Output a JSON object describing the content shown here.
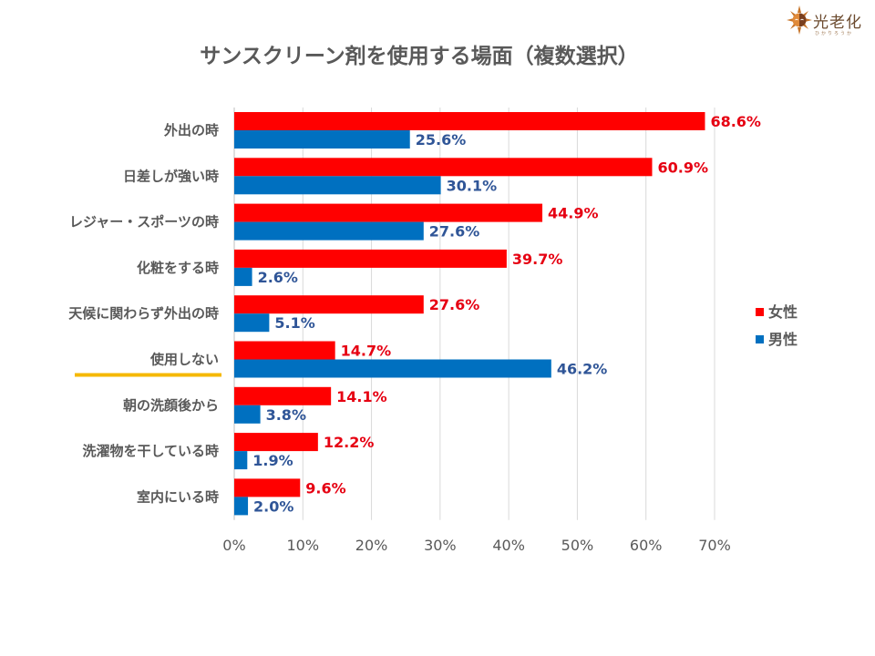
{
  "logo": {
    "icon": "sun-face-icon",
    "text": "光老化",
    "subtext": "ひかりろうか"
  },
  "chart_data": {
    "type": "bar",
    "orientation": "horizontal",
    "title": "サンスクリーン剤を使用する場面（複数選択）",
    "xlabel": "",
    "ylabel": "",
    "xlim": [
      0,
      70
    ],
    "x_ticks": [
      "0%",
      "10%",
      "20%",
      "30%",
      "40%",
      "50%",
      "60%",
      "70%"
    ],
    "x_tick_values": [
      0,
      10,
      20,
      30,
      40,
      50,
      60,
      70
    ],
    "grid": true,
    "legend_position": "right",
    "highlighted_category": "使用しない",
    "highlight_color": "#f5b800",
    "categories": [
      "外出の時",
      "日差しが強い時",
      "レジャー・スポーツの時",
      "化粧をする時",
      "天候に関わらず外出の時",
      "使用しない",
      "朝の洗顔後から",
      "洗濯物を干している時",
      "室内にいる時"
    ],
    "series": [
      {
        "name": "女性",
        "color": "#ff0000",
        "label_color": "#e60012",
        "values": [
          68.6,
          60.9,
          44.9,
          39.7,
          27.6,
          14.7,
          14.1,
          12.2,
          9.6
        ],
        "labels": [
          "68.6%",
          "60.9%",
          "44.9%",
          "39.7%",
          "27.6%",
          "14.7%",
          "14.1%",
          "12.2%",
          "9.6%"
        ]
      },
      {
        "name": "男性",
        "color": "#0070c0",
        "label_color": "#2f5597",
        "values": [
          25.6,
          30.1,
          27.6,
          2.6,
          5.1,
          46.2,
          3.8,
          1.9,
          2.0
        ],
        "labels": [
          "25.6%",
          "30.1%",
          "27.6%",
          "2.6%",
          "5.1%",
          "46.2%",
          "3.8%",
          "1.9%",
          "2.0%"
        ]
      }
    ]
  }
}
